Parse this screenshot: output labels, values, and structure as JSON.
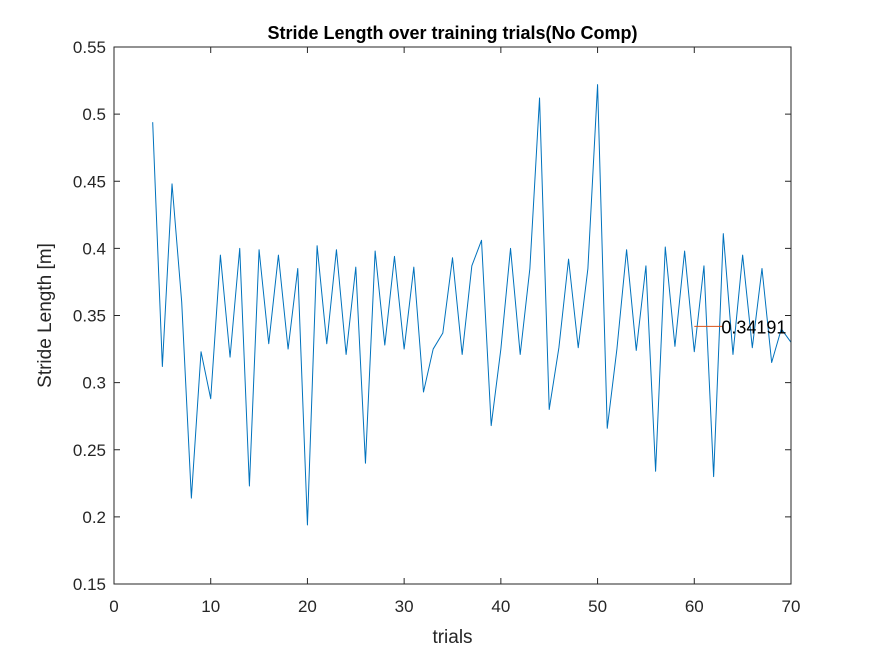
{
  "chart_data": {
    "type": "line",
    "title": "Stride Length over training trials(No Comp)",
    "xlabel": "trials",
    "ylabel": "Stride Length [m]",
    "xlim": [
      0,
      70
    ],
    "ylim": [
      0.15,
      0.55
    ],
    "xticks": [
      0,
      10,
      20,
      30,
      40,
      50,
      60,
      70
    ],
    "yticks": [
      0.15,
      0.2,
      0.25,
      0.3,
      0.35,
      0.4,
      0.45,
      0.5,
      0.55
    ],
    "x_tick_labels": [
      "0",
      "10",
      "20",
      "30",
      "40",
      "50",
      "60",
      "70"
    ],
    "y_tick_labels": [
      "0.15",
      "0.2",
      "0.25",
      "0.3",
      "0.35",
      "0.4",
      "0.45",
      "0.5",
      "0.55"
    ],
    "grid": false,
    "legend": "none",
    "series": [
      {
        "color": "#0072BD",
        "x": [
          4,
          5,
          6,
          7,
          8,
          9,
          10,
          11,
          12,
          13,
          14,
          15,
          16,
          17,
          18,
          19,
          20,
          21,
          22,
          23,
          24,
          25,
          26,
          27,
          28,
          29,
          30,
          31,
          32,
          33,
          34,
          35,
          36,
          37,
          38,
          39,
          40,
          41,
          42,
          43,
          44,
          45,
          46,
          47,
          48,
          49,
          50,
          51,
          52,
          53,
          54,
          55,
          56,
          57,
          58,
          59,
          60,
          61,
          62,
          63,
          64,
          65,
          66,
          67,
          68,
          69,
          70
        ],
        "y": [
          0.494,
          0.312,
          0.448,
          0.36,
          0.214,
          0.323,
          0.288,
          0.395,
          0.319,
          0.4,
          0.223,
          0.399,
          0.329,
          0.395,
          0.325,
          0.385,
          0.194,
          0.402,
          0.329,
          0.399,
          0.321,
          0.386,
          0.24,
          0.398,
          0.328,
          0.394,
          0.325,
          0.386,
          0.293,
          0.325,
          0.337,
          0.393,
          0.321,
          0.387,
          0.406,
          0.268,
          0.325,
          0.4,
          0.321,
          0.385,
          0.512,
          0.28,
          0.326,
          0.392,
          0.326,
          0.385,
          0.522,
          0.266,
          0.325,
          0.399,
          0.324,
          0.387,
          0.234,
          0.401,
          0.327,
          0.398,
          0.323,
          0.387,
          0.23,
          0.411,
          0.321,
          0.395,
          0.326,
          0.385,
          0.315,
          0.34,
          0.33
        ]
      }
    ],
    "reference_line": {
      "color": "#D95319",
      "x": [
        60,
        63
      ],
      "y": 0.34191
    },
    "annotation": {
      "text": "0.34191",
      "x": 62.8,
      "y": 0.34191
    }
  }
}
